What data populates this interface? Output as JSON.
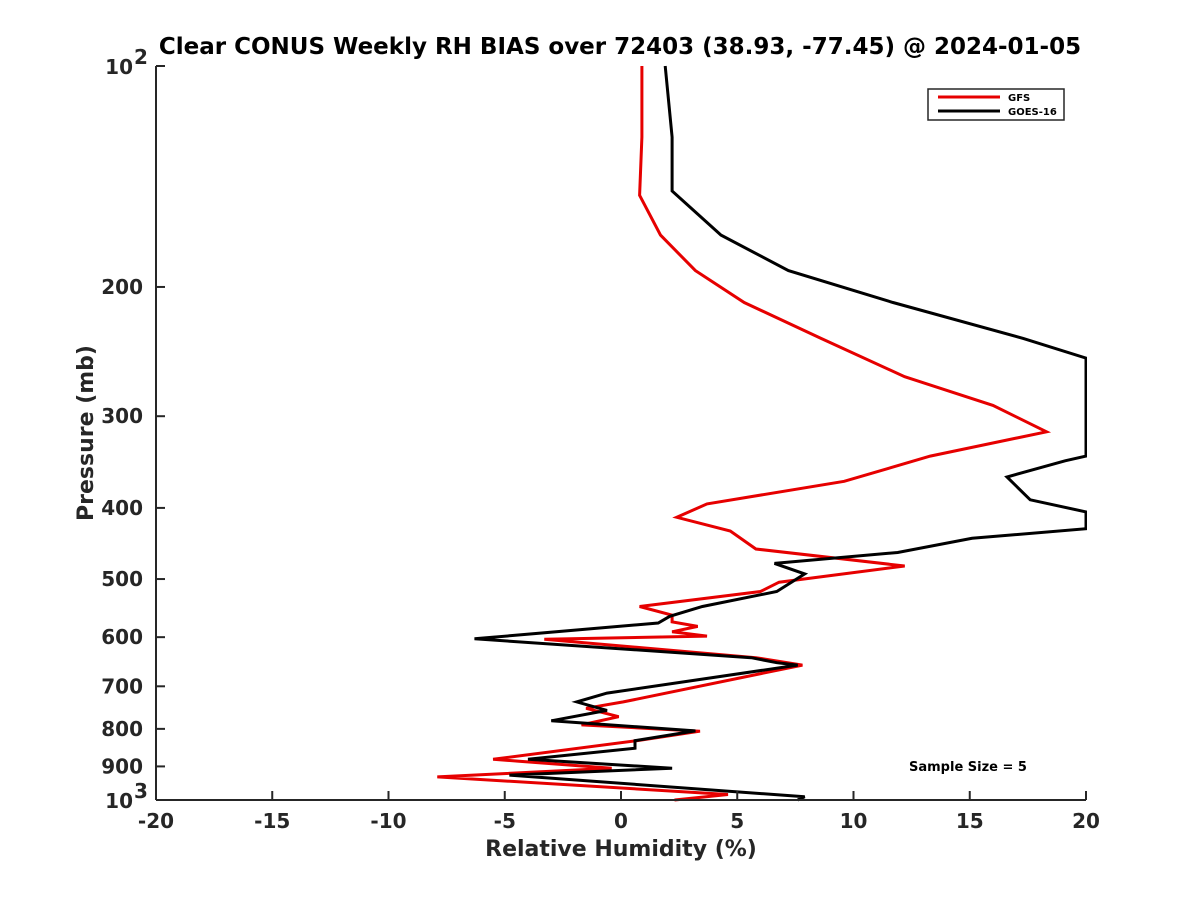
{
  "chart_data": {
    "type": "line",
    "title": "Clear CONUS Weekly RH BIAS over 72403 (38.93, -77.45) @ 2024-01-05",
    "xlabel": "Relative Humidity (%)",
    "ylabel": "Pressure (mb)",
    "xlim": [
      -20,
      20
    ],
    "ylim": [
      100,
      1000
    ],
    "y_scale": "log",
    "y_reversed": true,
    "x_ticks": [
      "-20",
      "-15",
      "-10",
      "-5",
      "0",
      "5",
      "10",
      "15",
      "20"
    ],
    "y_ticks": [
      {
        "value": 100,
        "base": "10",
        "exp": "2"
      },
      {
        "value": 200,
        "label": "200"
      },
      {
        "value": 300,
        "label": "300"
      },
      {
        "value": 400,
        "label": "400"
      },
      {
        "value": 500,
        "label": "500"
      },
      {
        "value": 600,
        "label": "600"
      },
      {
        "value": 700,
        "label": "700"
      },
      {
        "value": 800,
        "label": "800"
      },
      {
        "value": 900,
        "label": "900"
      },
      {
        "value": 1000,
        "base": "10",
        "exp": "3"
      }
    ],
    "grid": false,
    "legend_position": "top-right",
    "series": [
      {
        "name": "GFS",
        "color": "#e60000",
        "points": [
          [
            0.9,
            100
          ],
          [
            0.9,
            125
          ],
          [
            0.8,
            150
          ],
          [
            1.7,
            170
          ],
          [
            3.2,
            190
          ],
          [
            5.3,
            210
          ],
          [
            8.6,
            235
          ],
          [
            12.2,
            265
          ],
          [
            16.0,
            290
          ],
          [
            18.3,
            315
          ],
          [
            13.3,
            340
          ],
          [
            9.6,
            368
          ],
          [
            3.7,
            395
          ],
          [
            2.4,
            412
          ],
          [
            4.7,
            430
          ],
          [
            5.8,
            455
          ],
          [
            12.2,
            480
          ],
          [
            6.8,
            505
          ],
          [
            6.0,
            520
          ],
          [
            0.8,
            545
          ],
          [
            2.2,
            560
          ],
          [
            2.2,
            572
          ],
          [
            3.3,
            580
          ],
          [
            2.2,
            590
          ],
          [
            3.7,
            598
          ],
          [
            -3.3,
            604
          ],
          [
            5.8,
            640
          ],
          [
            7.8,
            655
          ],
          [
            0.1,
            735
          ],
          [
            -1.5,
            750
          ],
          [
            -0.1,
            770
          ],
          [
            -1.7,
            790
          ],
          [
            3.4,
            806
          ],
          [
            0.7,
            830
          ],
          [
            -5.5,
            880
          ],
          [
            -0.4,
            905
          ],
          [
            -7.9,
            930
          ],
          [
            4.6,
            983
          ],
          [
            2.3,
            1000
          ]
        ]
      },
      {
        "name": "GOES-16",
        "color": "#000000",
        "points": [
          [
            1.9,
            100
          ],
          [
            2.2,
            125
          ],
          [
            2.2,
            148
          ],
          [
            4.3,
            170
          ],
          [
            7.2,
            190
          ],
          [
            11.7,
            210
          ],
          [
            17.3,
            235
          ],
          [
            20.0,
            250
          ],
          [
            20.0,
            340
          ],
          [
            19.1,
            345
          ],
          [
            16.6,
            363
          ],
          [
            17.6,
            390
          ],
          [
            20.0,
            405
          ],
          [
            20.0,
            427
          ],
          [
            15.1,
            440
          ],
          [
            11.9,
            460
          ],
          [
            6.6,
            476
          ],
          [
            7.9,
            492
          ],
          [
            6.7,
            520
          ],
          [
            3.5,
            545
          ],
          [
            2.1,
            562
          ],
          [
            1.6,
            574
          ],
          [
            -6.3,
            603
          ],
          [
            5.6,
            640
          ],
          [
            6.7,
            650
          ],
          [
            7.6,
            655
          ],
          [
            -0.6,
            715
          ],
          [
            -1.9,
            735
          ],
          [
            -0.6,
            755
          ],
          [
            -3.0,
            780
          ],
          [
            3.2,
            805
          ],
          [
            0.6,
            830
          ],
          [
            0.6,
            850
          ],
          [
            -4.0,
            880
          ],
          [
            2.2,
            905
          ],
          [
            -4.8,
            925
          ],
          [
            7.9,
            990
          ],
          [
            7.6,
            1000
          ]
        ]
      }
    ],
    "annotation": "Sample Size = 5"
  }
}
